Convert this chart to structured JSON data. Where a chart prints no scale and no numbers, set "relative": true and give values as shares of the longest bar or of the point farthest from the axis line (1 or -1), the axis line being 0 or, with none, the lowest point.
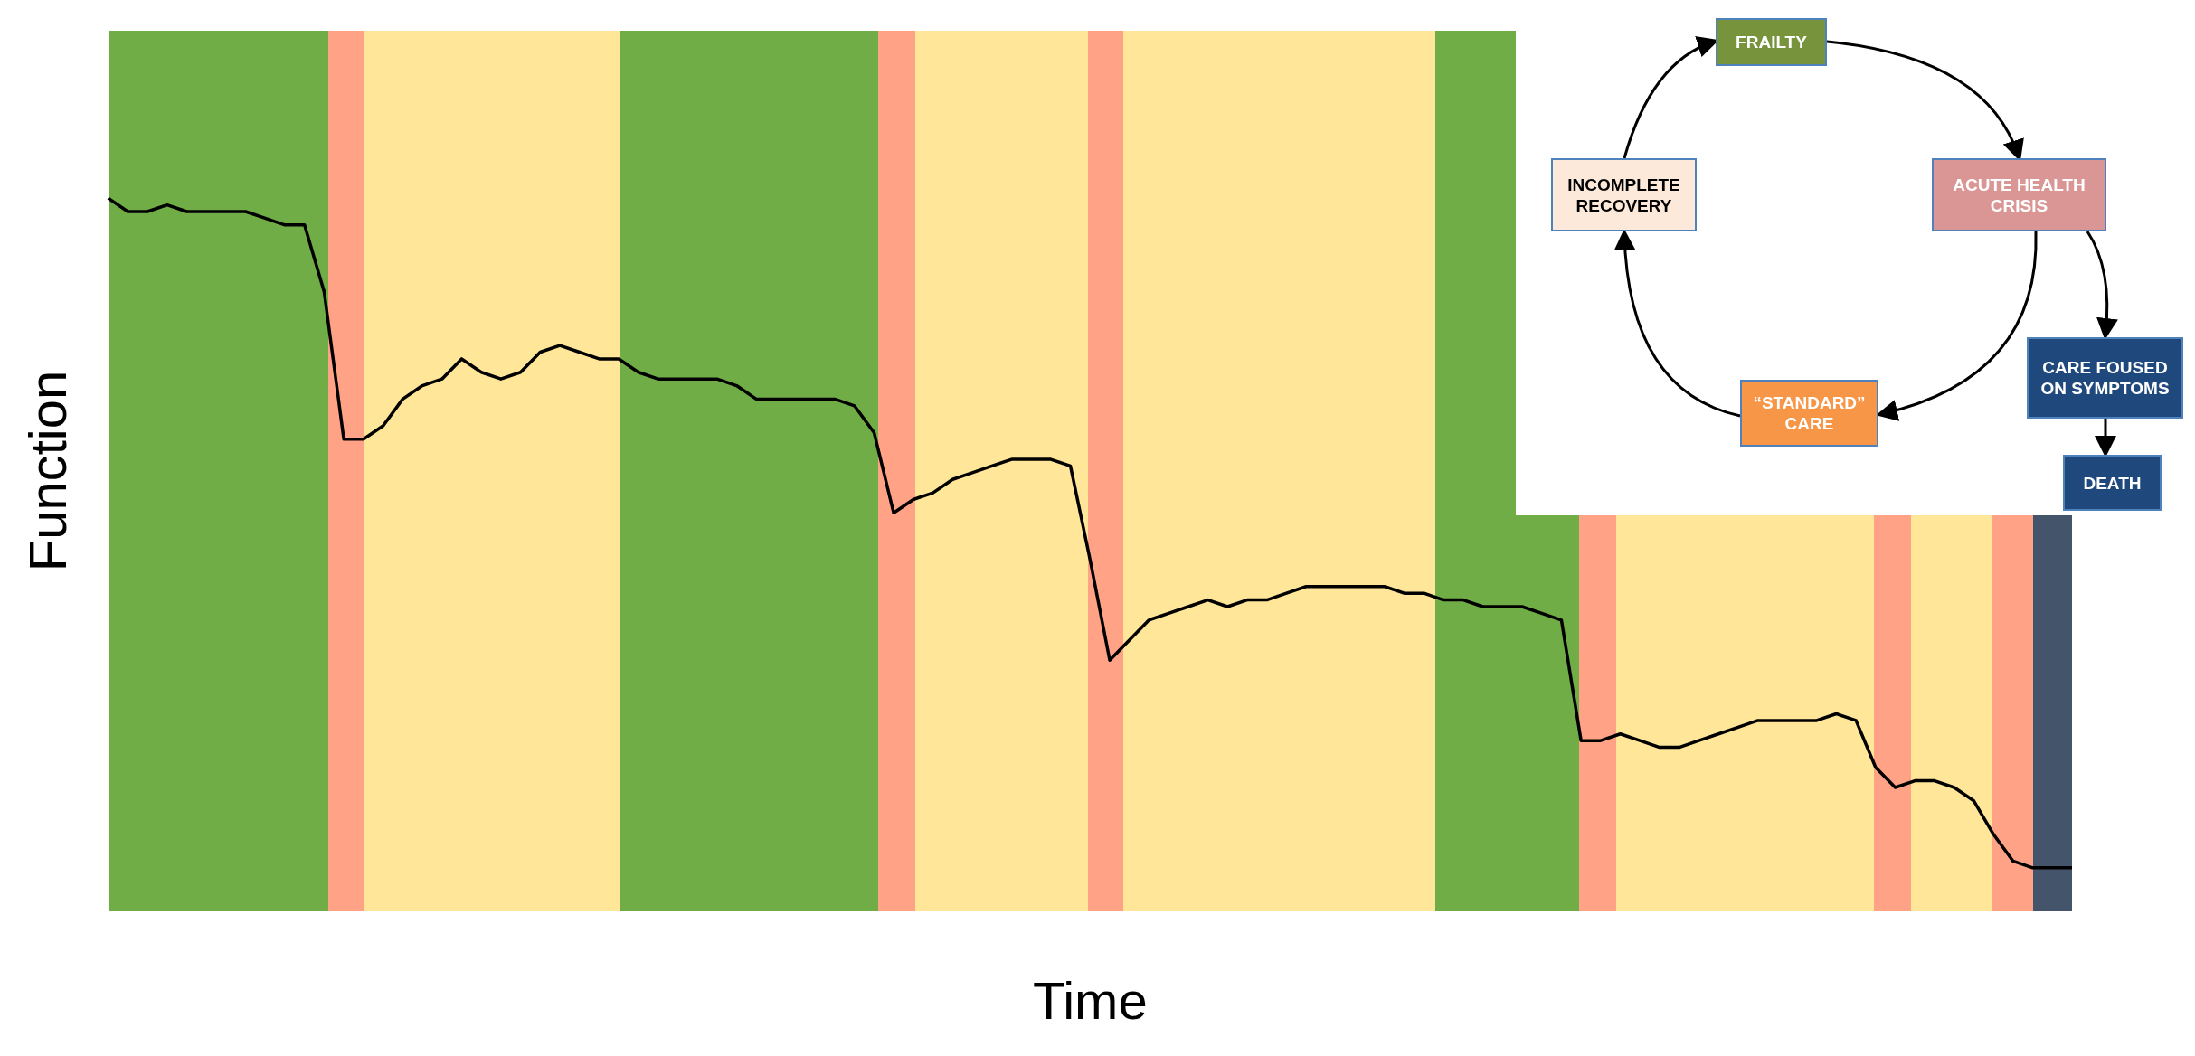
{
  "chart_data": {
    "type": "line",
    "xlabel": "Time",
    "ylabel": "Function",
    "relative": true,
    "categories": [
      null,
      null,
      null,
      null,
      null,
      null,
      null,
      null,
      null,
      null,
      null,
      null,
      null,
      null,
      null,
      null,
      null,
      null,
      null,
      null,
      null,
      null,
      null,
      null,
      null,
      null,
      null,
      null,
      null,
      null,
      null,
      null,
      null,
      null,
      null,
      null,
      null,
      null,
      null,
      null,
      null,
      null,
      null,
      null,
      null,
      null,
      null,
      null,
      null,
      null,
      null,
      null,
      null,
      null,
      null,
      null,
      null,
      null,
      null,
      null,
      null,
      null,
      null,
      null,
      null,
      null,
      null,
      null,
      null,
      null,
      null,
      null,
      null,
      null,
      null,
      null,
      null,
      null,
      null,
      null,
      null,
      null,
      null,
      null,
      null,
      null,
      null,
      null,
      null,
      null,
      null,
      null,
      null,
      null,
      null,
      null,
      null,
      null,
      null,
      null,
      null
    ],
    "series": [
      {
        "color": "#000000",
        "values": [
          1.0,
          0.98,
          0.98,
          0.99,
          0.98,
          0.98,
          0.98,
          0.98,
          0.97,
          0.96,
          0.96,
          0.86,
          0.64,
          0.64,
          0.66,
          0.7,
          0.72,
          0.73,
          0.76,
          0.74,
          0.73,
          0.74,
          0.77,
          0.78,
          0.77,
          0.76,
          0.76,
          0.74,
          0.73,
          0.73,
          0.73,
          0.73,
          0.72,
          0.7,
          0.7,
          0.7,
          0.7,
          0.7,
          0.69,
          0.65,
          0.53,
          0.55,
          0.56,
          0.58,
          0.59,
          0.6,
          0.61,
          0.61,
          0.61,
          0.6,
          0.46,
          0.31,
          0.34,
          0.37,
          0.38,
          0.39,
          0.4,
          0.39,
          0.4,
          0.4,
          0.41,
          0.42,
          0.42,
          0.42,
          0.42,
          0.42,
          0.41,
          0.41,
          0.4,
          0.4,
          0.39,
          0.39,
          0.39,
          0.38,
          0.37,
          0.19,
          0.19,
          0.2,
          0.19,
          0.18,
          0.18,
          0.19,
          0.2,
          0.21,
          0.22,
          0.22,
          0.22,
          0.22,
          0.23,
          0.22,
          0.15,
          0.12,
          0.13,
          0.13,
          0.12,
          0.1,
          0.05,
          0.01,
          0.0,
          0.0,
          0.0
        ]
      }
    ],
    "annotations": [
      "FRAILTY",
      "ACUTE HEALTH CRISIS",
      "INCOMPLETE RECOVERY",
      "“STANDARD” CARE",
      "CARE FOUSED ON SYMPTOMS",
      "DEATH"
    ]
  }
}
